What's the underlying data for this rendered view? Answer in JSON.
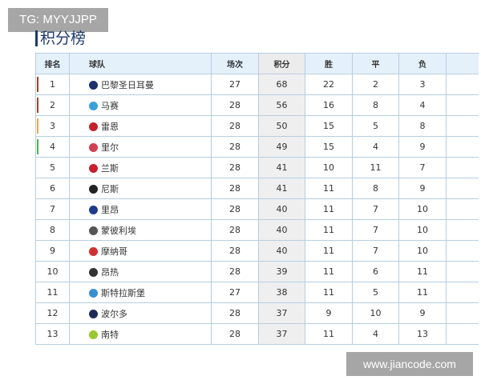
{
  "watermark_top": "TG: MYYJJPP",
  "watermark_bottom": "www.jiancode.com",
  "title": "积分榜",
  "headers": [
    "排名",
    "球队",
    "场次",
    "积分",
    "胜",
    "平",
    "负"
  ],
  "rows": [
    {
      "rank": "1",
      "team": "巴黎圣日耳曼",
      "played": "27",
      "points": "68",
      "w": "22",
      "d": "2",
      "l": "3",
      "zone": "#a0442f",
      "badge": "#1e2f6e"
    },
    {
      "rank": "2",
      "team": "马赛",
      "played": "28",
      "points": "56",
      "w": "16",
      "d": "8",
      "l": "4",
      "zone": "#a0442f",
      "badge": "#3aa0d8"
    },
    {
      "rank": "3",
      "team": "雷恩",
      "played": "28",
      "points": "50",
      "w": "15",
      "d": "5",
      "l": "8",
      "zone": "#e8a94a",
      "badge": "#c8202a"
    },
    {
      "rank": "4",
      "team": "里尔",
      "played": "28",
      "points": "49",
      "w": "15",
      "d": "4",
      "l": "9",
      "zone": "#4caf50",
      "badge": "#d04050"
    },
    {
      "rank": "5",
      "team": "兰斯",
      "played": "28",
      "points": "41",
      "w": "10",
      "d": "11",
      "l": "7",
      "zone": "",
      "badge": "#c8202a"
    },
    {
      "rank": "6",
      "team": "尼斯",
      "played": "28",
      "points": "41",
      "w": "11",
      "d": "8",
      "l": "9",
      "zone": "",
      "badge": "#222222"
    },
    {
      "rank": "7",
      "team": "里昂",
      "played": "28",
      "points": "40",
      "w": "11",
      "d": "7",
      "l": "10",
      "zone": "",
      "badge": "#1e3a8a"
    },
    {
      "rank": "8",
      "team": "蒙彼利埃",
      "played": "28",
      "points": "40",
      "w": "11",
      "d": "7",
      "l": "10",
      "zone": "",
      "badge": "#555555"
    },
    {
      "rank": "9",
      "team": "摩纳哥",
      "played": "28",
      "points": "40",
      "w": "11",
      "d": "7",
      "l": "10",
      "zone": "",
      "badge": "#d03030"
    },
    {
      "rank": "10",
      "team": "昂热",
      "played": "28",
      "points": "39",
      "w": "11",
      "d": "6",
      "l": "11",
      "zone": "",
      "badge": "#333333"
    },
    {
      "rank": "11",
      "team": "斯特拉斯堡",
      "played": "27",
      "points": "38",
      "w": "11",
      "d": "5",
      "l": "11",
      "zone": "",
      "badge": "#3a8fd0"
    },
    {
      "rank": "12",
      "team": "波尔多",
      "played": "28",
      "points": "37",
      "w": "9",
      "d": "10",
      "l": "9",
      "zone": "",
      "badge": "#1e2a5a"
    },
    {
      "rank": "13",
      "team": "南特",
      "played": "28",
      "points": "37",
      "w": "11",
      "d": "4",
      "l": "13",
      "zone": "",
      "badge": "#9ac830"
    }
  ]
}
